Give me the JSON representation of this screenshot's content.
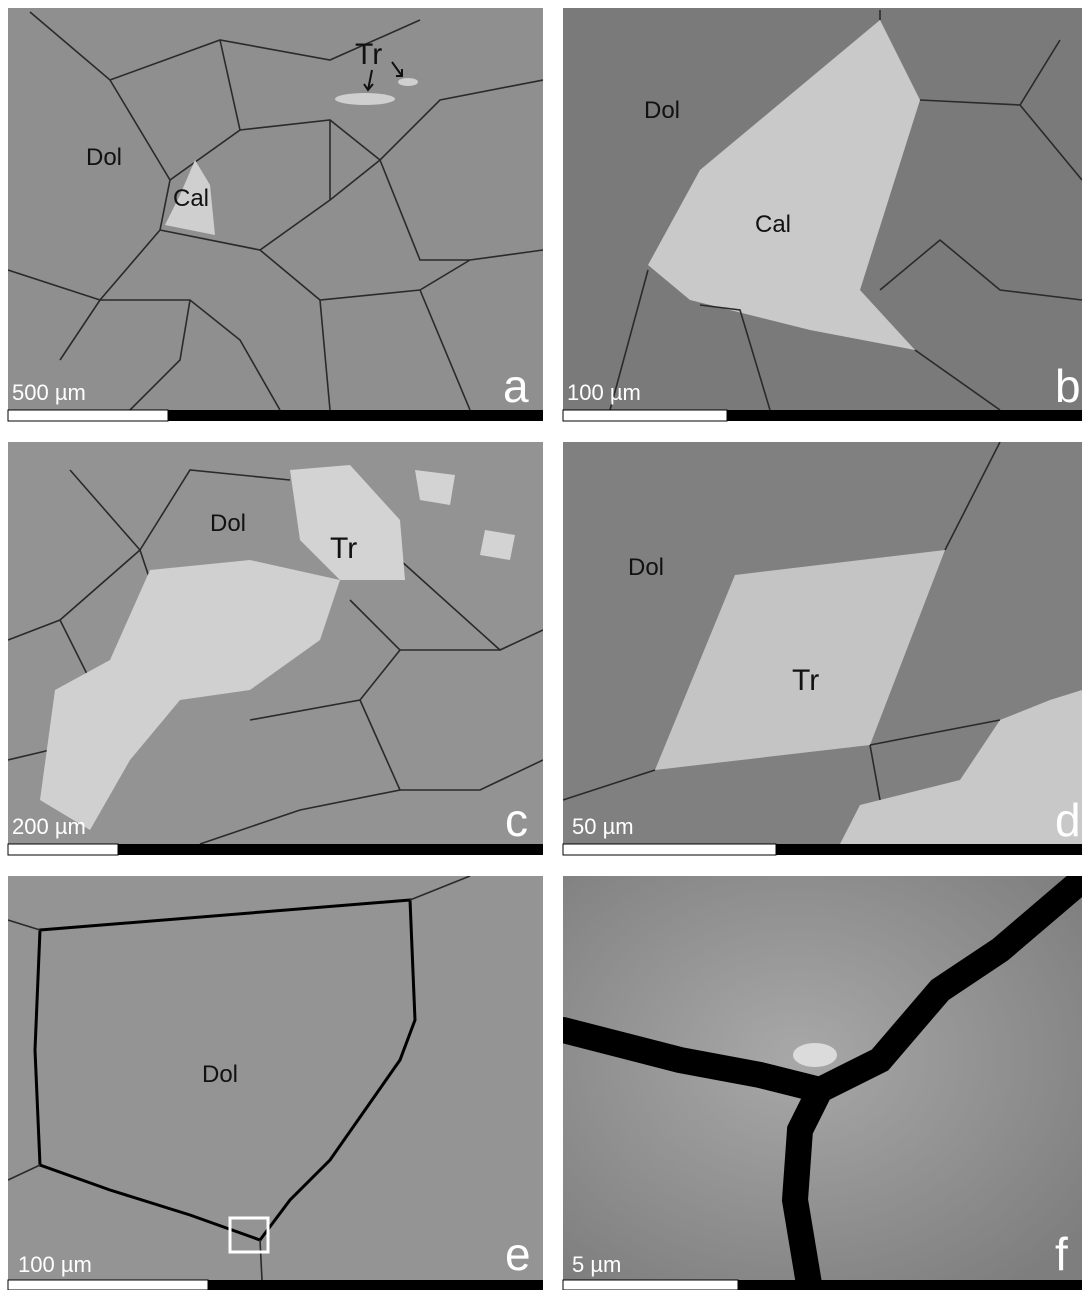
{
  "panels": [
    {
      "letter": "a",
      "scale_label": "500 µm",
      "labels": [
        "Tr",
        "Dol",
        "Cal"
      ]
    },
    {
      "letter": "b",
      "scale_label": "100 µm",
      "labels": [
        "Dol",
        "Cal"
      ]
    },
    {
      "letter": "c",
      "scale_label": "200 µm",
      "labels": [
        "Dol",
        "Tr"
      ]
    },
    {
      "letter": "d",
      "scale_label": "50 µm",
      "labels": [
        "Dol",
        "Tr"
      ]
    },
    {
      "letter": "e",
      "scale_label": "100 µm",
      "labels": [
        "Dol"
      ]
    },
    {
      "letter": "f",
      "scale_label": "5 µm",
      "labels": []
    }
  ]
}
